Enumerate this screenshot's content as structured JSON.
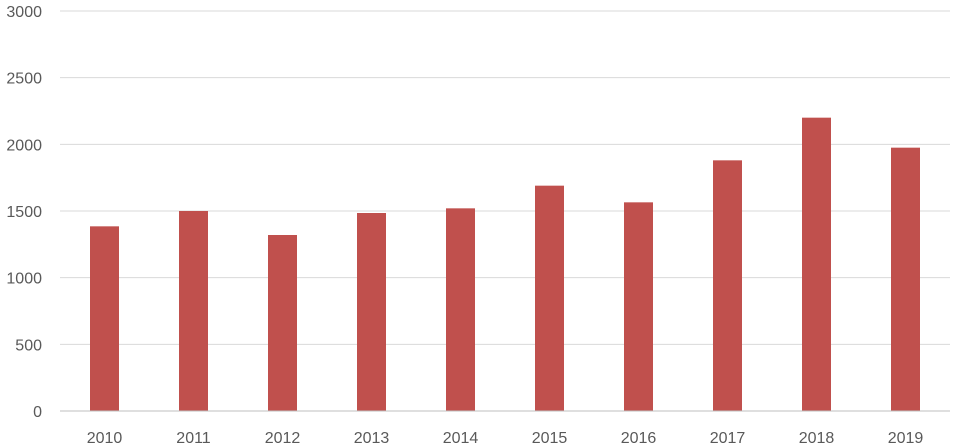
{
  "chart_data": {
    "type": "bar",
    "title": "",
    "xlabel": "",
    "ylabel": "",
    "categories": [
      "2010",
      "2011",
      "2012",
      "2013",
      "2014",
      "2015",
      "2016",
      "2017",
      "2018",
      "2019"
    ],
    "values": [
      1385,
      1500,
      1320,
      1485,
      1520,
      1690,
      1565,
      1880,
      2200,
      1975
    ],
    "ylim": [
      0,
      3000
    ],
    "yticks": [
      0,
      500,
      1000,
      1500,
      2000,
      2500,
      3000
    ],
    "grid": true,
    "legend": "none",
    "colors": {
      "bar": "#c0504d",
      "grid": "#d9d9d9",
      "text": "#595959"
    }
  }
}
